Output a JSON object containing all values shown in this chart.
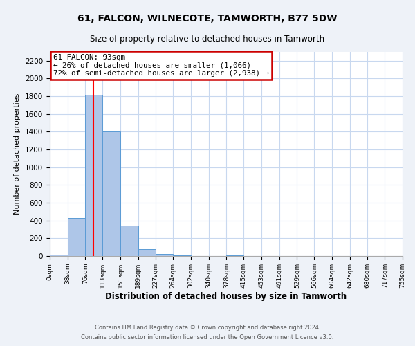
{
  "title": "61, FALCON, WILNECOTE, TAMWORTH, B77 5DW",
  "subtitle": "Size of property relative to detached houses in Tamworth",
  "xlabel": "Distribution of detached houses by size in Tamworth",
  "ylabel": "Number of detached properties",
  "bin_edges": [
    0,
    38,
    76,
    113,
    151,
    189,
    227,
    264,
    302,
    340,
    378,
    415,
    453,
    491,
    529,
    566,
    604,
    642,
    680,
    717,
    755
  ],
  "bin_counts": [
    15,
    430,
    1820,
    1400,
    345,
    75,
    25,
    5,
    0,
    0,
    5,
    0,
    0,
    0,
    0,
    0,
    0,
    0,
    0,
    0
  ],
  "bar_color": "#aec6e8",
  "bar_edge_color": "#5b9bd5",
  "property_value": 93,
  "red_line_color": "#ff0000",
  "annotation_line1": "61 FALCON: 93sqm",
  "annotation_line2": "← 26% of detached houses are smaller (1,066)",
  "annotation_line3": "72% of semi-detached houses are larger (2,938) →",
  "annotation_box_color": "#ffffff",
  "annotation_box_edge_color": "#cc0000",
  "ylim": [
    0,
    2300
  ],
  "yticks": [
    0,
    200,
    400,
    600,
    800,
    1000,
    1200,
    1400,
    1600,
    1800,
    2000,
    2200
  ],
  "tick_labels": [
    "0sqm",
    "38sqm",
    "76sqm",
    "113sqm",
    "151sqm",
    "189sqm",
    "227sqm",
    "264sqm",
    "302sqm",
    "340sqm",
    "378sqm",
    "415sqm",
    "453sqm",
    "491sqm",
    "529sqm",
    "566sqm",
    "604sqm",
    "642sqm",
    "680sqm",
    "717sqm",
    "755sqm"
  ],
  "footer_line1": "Contains HM Land Registry data © Crown copyright and database right 2024.",
  "footer_line2": "Contains public sector information licensed under the Open Government Licence v3.0.",
  "background_color": "#eef2f8",
  "plot_background_color": "#ffffff",
  "grid_color": "#c8d8ef"
}
